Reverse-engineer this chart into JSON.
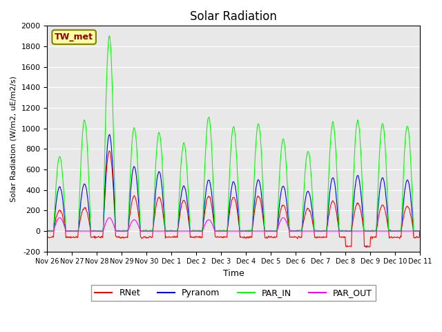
{
  "title": "Solar Radiation",
  "ylabel": "Solar Radiation (W/m2, uE/m2/s)",
  "xlabel": "Time",
  "ylim": [
    -200,
    2000
  ],
  "station_label": "TW_met",
  "line_colors": [
    "red",
    "blue",
    "lime",
    "magenta"
  ],
  "x_tick_labels": [
    "Nov 26",
    "Nov 27",
    "Nov 28",
    "Nov 29",
    "Nov 30",
    "Dec 1",
    "Dec 2",
    "Dec 3",
    "Dec 4",
    "Dec 5",
    "Dec 6",
    "Dec 7",
    "Dec 8",
    "Dec 9",
    "Dec 10",
    "Dec 11"
  ],
  "n_days": 15,
  "points_per_day": 48,
  "par_in_peaks": [
    730,
    1080,
    1900,
    1010,
    960,
    860,
    1110,
    1020,
    1050,
    900,
    780,
    1060,
    1080,
    1050,
    1030
  ],
  "pyranom_peaks": [
    430,
    460,
    940,
    630,
    580,
    440,
    500,
    480,
    500,
    440,
    390,
    520,
    540,
    520,
    500
  ],
  "rnet_peaks": [
    200,
    230,
    780,
    340,
    330,
    300,
    340,
    330,
    340,
    250,
    220,
    290,
    270,
    250,
    240
  ],
  "par_out_peaks": [
    130,
    0,
    130,
    110,
    0,
    0,
    110,
    0,
    0,
    130,
    0,
    0,
    0,
    0,
    0
  ],
  "rnet_night": [
    -60,
    -60,
    -60,
    -60,
    -60,
    -60,
    -60,
    -60,
    -60,
    -60,
    -60,
    -60,
    -150,
    -60,
    -60
  ],
  "yticks": [
    -200,
    0,
    200,
    400,
    600,
    800,
    1000,
    1200,
    1400,
    1600,
    1800,
    2000
  ]
}
